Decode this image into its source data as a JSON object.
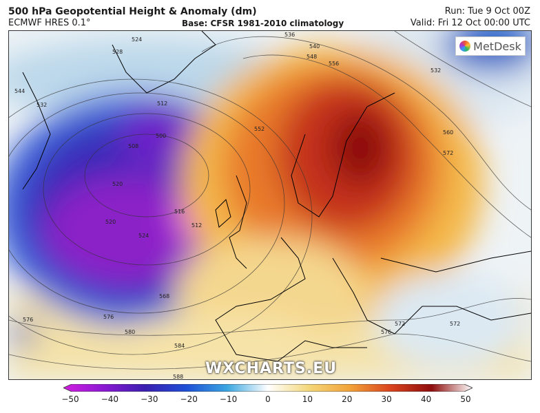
{
  "header": {
    "title": "500 hPa Geopotential Height & Anomaly (dm)",
    "model": "ECMWF HRES 0.1°",
    "base": "Base: CFSR 1981-2010 climatology",
    "run": "Run: Tue 9 Oct 00Z",
    "valid": "Valid: Fri 12 Oct 00:00 UTC"
  },
  "logo": {
    "text": "MetDesk",
    "icon": "metdesk-logo-icon"
  },
  "watermark": "WXCHARTS.EU",
  "contours": {
    "labels": [
      "528",
      "524",
      "532",
      "544",
      "512",
      "500",
      "508",
      "520",
      "516",
      "524",
      "520",
      "512",
      "536",
      "540",
      "548",
      "556",
      "552",
      "560",
      "572",
      "532",
      "568",
      "576",
      "576",
      "580",
      "572",
      "584",
      "588",
      "576",
      "572"
    ]
  },
  "colorbar": {
    "ticks": [
      "−50",
      "−40",
      "−30",
      "−20",
      "−10",
      "0",
      "10",
      "20",
      "30",
      "40",
      "50"
    ],
    "colors": [
      "#d21fe0",
      "#8a1ad2",
      "#3a1fb0",
      "#1e4fd6",
      "#3aa6e0",
      "#ffffff",
      "#f4d77a",
      "#f2a33a",
      "#d9431e",
      "#8e0d0d",
      "#ffffff"
    ]
  }
}
